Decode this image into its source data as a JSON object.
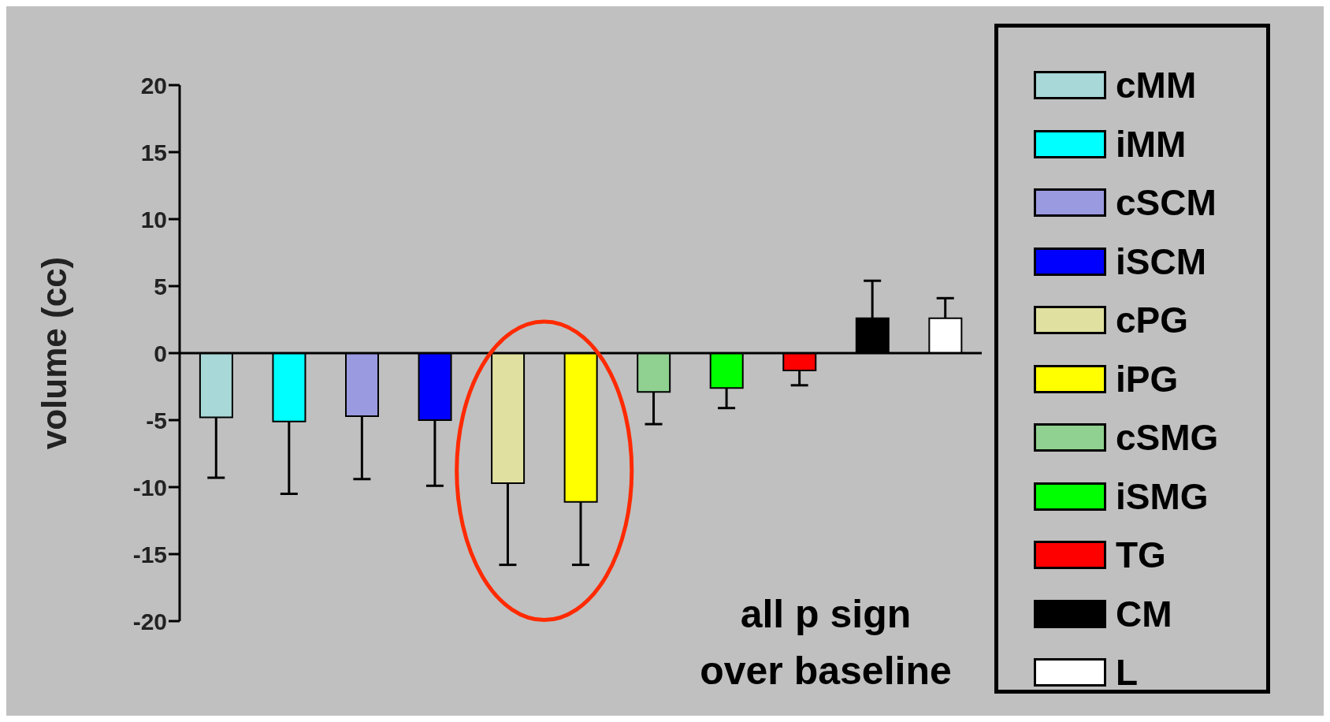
{
  "chart_data": {
    "type": "bar",
    "ylabel": "volume (cc)",
    "categories": [
      null,
      null,
      null,
      null,
      null,
      null,
      null,
      null,
      null,
      null,
      null
    ],
    "series": [
      {
        "name": "cMM",
        "color": "#a8d8d8",
        "values": [
          -4.8,
          null,
          null,
          null,
          null,
          null,
          null,
          null,
          null,
          null,
          null
        ],
        "errors": [
          [
            -9.3,
            -4.8
          ],
          null,
          null,
          null,
          null,
          null,
          null,
          null,
          null,
          null,
          null
        ]
      },
      {
        "name": "iMM",
        "color": "#00ffff",
        "values": [
          null,
          -5.1,
          null,
          null,
          null,
          null,
          null,
          null,
          null,
          null,
          null
        ],
        "errors": [
          null,
          [
            -10.5,
            -5.1
          ],
          null,
          null,
          null,
          null,
          null,
          null,
          null,
          null,
          null
        ]
      },
      {
        "name": "cSCM",
        "color": "#9a9ae0",
        "values": [
          null,
          null,
          -4.7,
          null,
          null,
          null,
          null,
          null,
          null,
          null,
          null
        ],
        "errors": [
          null,
          null,
          [
            -9.4,
            -4.7
          ],
          null,
          null,
          null,
          null,
          null,
          null,
          null,
          null
        ]
      },
      {
        "name": "iSCM",
        "color": "#0000ff",
        "values": [
          null,
          null,
          null,
          -5.0,
          null,
          null,
          null,
          null,
          null,
          null,
          null
        ],
        "errors": [
          null,
          null,
          null,
          [
            -9.9,
            -5.0
          ],
          null,
          null,
          null,
          null,
          null,
          null,
          null
        ]
      },
      {
        "name": "cPG",
        "color": "#e0e0a0",
        "values": [
          null,
          null,
          null,
          null,
          -9.7,
          null,
          null,
          null,
          null,
          null,
          null
        ],
        "errors": [
          null,
          null,
          null,
          null,
          [
            -15.8,
            -9.7
          ],
          null,
          null,
          null,
          null,
          null,
          null
        ]
      },
      {
        "name": "iPG",
        "color": "#ffff00",
        "values": [
          null,
          null,
          null,
          null,
          null,
          -11.1,
          null,
          null,
          null,
          null,
          null
        ],
        "errors": [
          null,
          null,
          null,
          null,
          null,
          [
            -15.8,
            -11.1
          ],
          null,
          null,
          null,
          null,
          null
        ]
      },
      {
        "name": "cSMG",
        "color": "#90d090",
        "values": [
          null,
          null,
          null,
          null,
          null,
          null,
          -2.9,
          null,
          null,
          null,
          null
        ],
        "errors": [
          null,
          null,
          null,
          null,
          null,
          null,
          [
            -5.3,
            -2.9
          ],
          null,
          null,
          null,
          null
        ]
      },
      {
        "name": "iSMG",
        "color": "#00ff00",
        "values": [
          null,
          null,
          null,
          null,
          null,
          null,
          null,
          -2.6,
          null,
          null,
          null
        ],
        "errors": [
          null,
          null,
          null,
          null,
          null,
          null,
          null,
          [
            -4.1,
            -2.6
          ],
          null,
          null,
          null
        ]
      },
      {
        "name": "TG",
        "color": "#ff0000",
        "values": [
          null,
          null,
          null,
          null,
          null,
          null,
          null,
          null,
          -1.3,
          null,
          null
        ],
        "errors": [
          null,
          null,
          null,
          null,
          null,
          null,
          null,
          null,
          [
            -2.4,
            -1.3
          ],
          null,
          null
        ]
      },
      {
        "name": "CM",
        "color": "#000000",
        "values": [
          null,
          null,
          null,
          null,
          null,
          null,
          null,
          null,
          null,
          2.6,
          null
        ],
        "errors": [
          null,
          null,
          null,
          null,
          null,
          null,
          null,
          null,
          null,
          [
            2.6,
            5.4
          ],
          null
        ]
      },
      {
        "name": "L",
        "color": "#ffffff",
        "values": [
          null,
          null,
          null,
          null,
          null,
          null,
          null,
          null,
          null,
          null,
          2.6
        ],
        "errors": [
          null,
          null,
          null,
          null,
          null,
          null,
          null,
          null,
          null,
          null,
          [
            2.6,
            4.1
          ]
        ]
      }
    ],
    "ylim": [
      -20,
      20
    ],
    "yticks": [
      -20,
      -15,
      -10,
      -5,
      0,
      5,
      10,
      15,
      20
    ],
    "tick_labels": "y",
    "legend": "right",
    "ref_lines": [
      {
        "axis": "y",
        "value": 0,
        "color": "#000000"
      }
    ],
    "annotations": [
      "all p sign\nover baseline"
    ]
  }
}
